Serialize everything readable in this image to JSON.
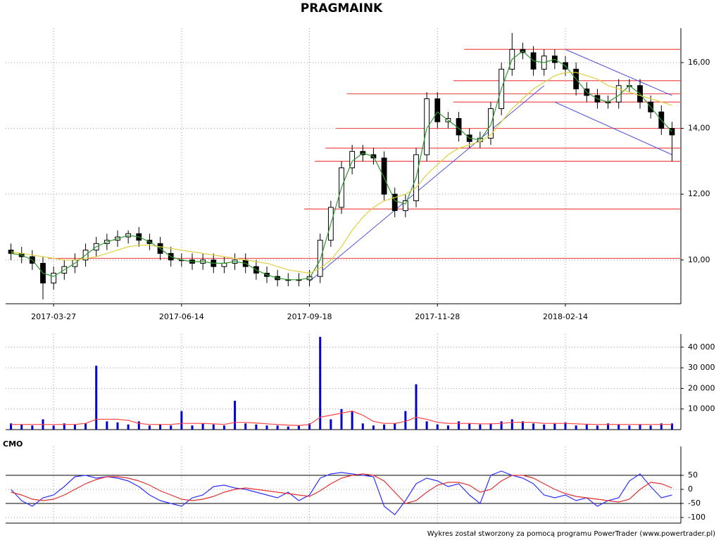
{
  "chart_data": [
    {
      "type": "candlestick",
      "title": "PRAGMAINK",
      "categories": [
        null,
        null,
        null,
        null,
        "2017-03-27",
        null,
        null,
        null,
        null,
        null,
        null,
        null,
        null,
        null,
        null,
        null,
        "2017-06-14",
        null,
        null,
        null,
        null,
        null,
        null,
        null,
        null,
        null,
        null,
        null,
        "2017-09-18",
        null,
        null,
        null,
        null,
        null,
        null,
        null,
        null,
        null,
        null,
        null,
        "2017-11-28",
        null,
        null,
        null,
        null,
        null,
        null,
        null,
        null,
        null,
        null,
        null,
        "2018-02-14",
        null,
        null,
        null,
        null,
        null,
        null,
        null,
        null,
        null,
        null
      ],
      "open": [
        10.3,
        10.2,
        10.1,
        9.9,
        9.3,
        9.6,
        9.8,
        10.0,
        10.3,
        10.5,
        10.6,
        10.7,
        10.8,
        10.6,
        10.5,
        10.2,
        10.0,
        10.0,
        9.9,
        10.0,
        9.8,
        9.9,
        10.0,
        9.8,
        9.6,
        9.5,
        9.4,
        9.4,
        9.4,
        9.5,
        10.6,
        11.6,
        12.8,
        13.3,
        13.2,
        13.1,
        12.0,
        11.5,
        11.8,
        13.2,
        14.9,
        14.2,
        14.3,
        13.8,
        13.6,
        13.7,
        14.6,
        15.8,
        16.4,
        16.3,
        15.8,
        16.2,
        16.0,
        15.8,
        15.2,
        15.0,
        14.8,
        14.8,
        15.3,
        15.3,
        14.8,
        14.5,
        14.0
      ],
      "high": [
        10.5,
        10.4,
        10.3,
        10.1,
        9.8,
        10.0,
        10.2,
        10.5,
        10.7,
        10.8,
        10.9,
        10.9,
        11.0,
        10.8,
        10.7,
        10.4,
        10.2,
        10.2,
        10.2,
        10.2,
        10.1,
        10.2,
        10.2,
        10.0,
        9.8,
        9.7,
        9.6,
        9.6,
        9.7,
        10.8,
        11.8,
        13.0,
        13.5,
        13.5,
        13.4,
        13.3,
        12.2,
        12.0,
        13.4,
        15.1,
        15.1,
        14.5,
        14.5,
        14.0,
        13.9,
        14.8,
        16.0,
        16.9,
        16.6,
        16.5,
        16.4,
        16.4,
        16.2,
        16.0,
        15.4,
        15.2,
        15.0,
        15.5,
        15.5,
        15.5,
        15.0,
        14.7,
        14.2
      ],
      "low": [
        10.0,
        9.9,
        9.7,
        8.8,
        9.1,
        9.4,
        9.6,
        9.8,
        10.1,
        10.3,
        10.4,
        10.5,
        10.4,
        10.3,
        10.0,
        9.8,
        9.8,
        9.7,
        9.7,
        9.6,
        9.6,
        9.7,
        9.6,
        9.4,
        9.3,
        9.2,
        9.2,
        9.2,
        9.2,
        9.3,
        10.4,
        11.4,
        12.6,
        13.0,
        12.9,
        11.8,
        11.3,
        11.3,
        11.6,
        13.0,
        14.0,
        14.0,
        13.6,
        13.4,
        13.4,
        13.5,
        14.4,
        15.6,
        16.1,
        15.6,
        15.6,
        15.8,
        15.6,
        15.0,
        14.8,
        14.6,
        14.6,
        14.6,
        15.1,
        14.6,
        14.3,
        13.8,
        13.0
      ],
      "close": [
        10.2,
        10.1,
        9.9,
        9.3,
        9.6,
        9.8,
        10.0,
        10.3,
        10.5,
        10.6,
        10.7,
        10.8,
        10.6,
        10.5,
        10.2,
        10.0,
        10.0,
        9.9,
        10.0,
        9.8,
        9.9,
        10.0,
        9.8,
        9.6,
        9.5,
        9.4,
        9.4,
        9.4,
        9.5,
        10.6,
        11.6,
        12.8,
        13.3,
        13.2,
        13.1,
        12.0,
        11.5,
        11.8,
        13.2,
        14.9,
        14.2,
        14.3,
        13.8,
        13.6,
        13.7,
        14.6,
        15.8,
        16.4,
        16.3,
        15.8,
        16.2,
        16.0,
        15.8,
        15.2,
        15.0,
        14.8,
        14.8,
        15.3,
        15.3,
        14.8,
        14.5,
        14.0,
        13.8
      ],
      "ylim": [
        8.67,
        16.94
      ],
      "yticks": [
        {
          "value": 10,
          "label": "10,00"
        },
        {
          "value": 12,
          "label": "12,00"
        },
        {
          "value": 14,
          "label": "14,00"
        },
        {
          "value": 16,
          "label": "16,00"
        }
      ],
      "grid": true,
      "moving_averages": [
        {
          "color": "#2e9a2e",
          "values": [
            10.2,
            10.15,
            10.0,
            9.6,
            9.5,
            9.7,
            9.9,
            10.15,
            10.4,
            10.55,
            10.65,
            10.75,
            10.7,
            10.55,
            10.35,
            10.1,
            10.0,
            9.95,
            9.95,
            9.9,
            9.9,
            9.95,
            9.9,
            9.7,
            9.55,
            9.45,
            9.4,
            9.4,
            9.45,
            10.0,
            11.1,
            12.2,
            13.0,
            13.25,
            13.15,
            12.5,
            11.8,
            11.7,
            12.5,
            14.0,
            14.5,
            14.25,
            14.0,
            13.7,
            13.65,
            14.1,
            15.2,
            16.1,
            16.35,
            16.05,
            16.0,
            16.1,
            15.9,
            15.5,
            15.1,
            14.9,
            14.8,
            15.0,
            15.3,
            15.05,
            14.65,
            14.25,
            13.9
          ]
        },
        {
          "color": "#e0d040",
          "values": [
            10.25,
            10.2,
            10.15,
            10.1,
            10.05,
            10.0,
            10.0,
            10.05,
            10.1,
            10.2,
            10.3,
            10.4,
            10.45,
            10.45,
            10.4,
            10.35,
            10.3,
            10.25,
            10.2,
            10.15,
            10.1,
            10.05,
            10.0,
            9.95,
            9.9,
            9.8,
            9.7,
            9.65,
            9.6,
            9.75,
            10.0,
            10.4,
            10.9,
            11.3,
            11.6,
            11.8,
            11.9,
            12.0,
            12.2,
            12.6,
            12.9,
            13.2,
            13.4,
            13.5,
            13.6,
            13.8,
            14.2,
            14.6,
            14.9,
            15.2,
            15.4,
            15.6,
            15.7,
            15.7,
            15.6,
            15.5,
            15.3,
            15.2,
            15.1,
            15.0,
            14.9,
            14.8,
            14.7
          ]
        }
      ],
      "levels": {
        "color": "#f05050",
        "items": [
          {
            "value": 10.05,
            "from": 4
          },
          {
            "value": 11.55,
            "from": 28
          },
          {
            "value": 13.0,
            "from": 29
          },
          {
            "value": 13.4,
            "from": 30
          },
          {
            "value": 14.0,
            "from": 31
          },
          {
            "value": 15.05,
            "from": 32
          },
          {
            "value": 14.8,
            "from": 42
          },
          {
            "value": 15.45,
            "from": 42
          },
          {
            "value": 16.4,
            "from": 43
          }
        ]
      },
      "trendlines": {
        "color": "#5050e0",
        "items": [
          {
            "x": [
              28,
              50
            ],
            "y": [
              9.35,
              15.3
            ]
          },
          {
            "x": [
              52,
              62
            ],
            "y": [
              16.4,
              15.0
            ]
          },
          {
            "x": [
              51,
              62
            ],
            "y": [
              14.8,
              13.2
            ]
          }
        ]
      }
    },
    {
      "type": "bar",
      "color": "#0000cc",
      "values": [
        3000,
        2500,
        2000,
        5000,
        2000,
        3000,
        2500,
        3000,
        31000,
        4000,
        3500,
        2500,
        4000,
        2000,
        2500,
        2000,
        9000,
        2000,
        3000,
        2500,
        2000,
        14000,
        3000,
        2500,
        2000,
        2000,
        1500,
        2000,
        3000,
        45000,
        5000,
        10000,
        9000,
        3000,
        2000,
        2500,
        3000,
        9000,
        22000,
        4000,
        2500,
        2000,
        4000,
        3000,
        2500,
        3000,
        4000,
        5000,
        4000,
        3000,
        2500,
        3000,
        3500,
        2000,
        2500,
        2000,
        3000,
        2500,
        2000,
        2500,
        2000,
        3000,
        3000
      ],
      "average": {
        "color": "#ff4040",
        "values": [
          2500,
          2500,
          2500,
          2500,
          2500,
          2500,
          2500,
          3000,
          5000,
          5000,
          5000,
          4500,
          3000,
          2500,
          2500,
          2500,
          3000,
          3000,
          3000,
          2800,
          2500,
          3500,
          3500,
          3200,
          2800,
          2500,
          2200,
          2000,
          2500,
          6000,
          7000,
          8000,
          9000,
          7000,
          4000,
          3000,
          3000,
          4000,
          6000,
          5000,
          3500,
          3000,
          3000,
          3000,
          2800,
          2800,
          3000,
          3500,
          3500,
          3500,
          3000,
          3000,
          3000,
          2800,
          2600,
          2500,
          2500,
          2500,
          2500,
          2500,
          2500,
          2500,
          2500
        ]
      },
      "ylim": [
        0,
        44700
      ],
      "yticks": [
        {
          "value": 10000,
          "label": "10 000"
        },
        {
          "value": 20000,
          "label": "20 000"
        },
        {
          "value": 30000,
          "label": "30 000"
        },
        {
          "value": 40000,
          "label": "40 000"
        }
      ],
      "grid": true
    },
    {
      "type": "line",
      "title": "CMO",
      "series": [
        {
          "color": "#3030ff",
          "values": [
            0,
            -40,
            -60,
            -30,
            -20,
            10,
            45,
            50,
            40,
            45,
            40,
            30,
            10,
            -20,
            -40,
            -50,
            -60,
            -30,
            -20,
            10,
            15,
            5,
            0,
            -10,
            -20,
            -30,
            -10,
            -40,
            -20,
            40,
            55,
            60,
            55,
            50,
            45,
            -60,
            -90,
            -40,
            20,
            40,
            30,
            10,
            20,
            -20,
            -50,
            50,
            65,
            50,
            40,
            20,
            -20,
            -30,
            -20,
            -40,
            -30,
            -60,
            -40,
            -30,
            30,
            55,
            10,
            -30,
            -20
          ]
        },
        {
          "color": "#e03030",
          "values": [
            -10,
            -20,
            -35,
            -40,
            -35,
            -20,
            0,
            20,
            35,
            45,
            45,
            40,
            30,
            15,
            -5,
            -20,
            -35,
            -40,
            -35,
            -25,
            -10,
            0,
            5,
            0,
            -5,
            -10,
            -15,
            -20,
            -25,
            -5,
            20,
            40,
            50,
            55,
            50,
            30,
            -10,
            -50,
            -40,
            -10,
            15,
            25,
            25,
            15,
            -10,
            0,
            30,
            50,
            50,
            40,
            20,
            0,
            -15,
            -25,
            -30,
            -35,
            -40,
            -45,
            -35,
            0,
            25,
            20,
            5
          ]
        }
      ],
      "ylim": [
        -120,
        140
      ],
      "yticks": [
        50,
        0,
        -50,
        -100
      ],
      "reference_lines": [
        50,
        -50
      ],
      "grid": true
    }
  ],
  "footer": "Wykres został stworzony za pomocą programu PowerTrader (www.powertrader.pl)"
}
